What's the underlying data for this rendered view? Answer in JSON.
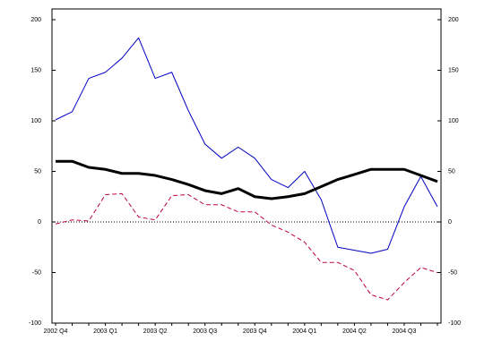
{
  "chart_data": {
    "type": "line",
    "categories": [
      "2002 Q4",
      null,
      null,
      "2003 Q1",
      null,
      null,
      "2003 Q2",
      null,
      null,
      "2003 Q3",
      null,
      null,
      "2003 Q4",
      null,
      null,
      "2004 Q1",
      null,
      null,
      "2004 Q2",
      null,
      null,
      "2004 Q3",
      null,
      null
    ],
    "series": [
      {
        "color": "#0000c0",
        "width": 1,
        "dash": false,
        "values": [
          101,
          109,
          142,
          148,
          162,
          182,
          142,
          148,
          110,
          77,
          63,
          74,
          63,
          42,
          34,
          50,
          22,
          -25,
          -28,
          -31,
          -27,
          15,
          45,
          15
        ]
      },
      {
        "color": "#000000",
        "width": 3,
        "dash": false,
        "values": [
          60,
          60,
          54,
          52,
          48,
          48,
          46,
          42,
          37,
          31,
          28,
          33,
          25,
          23,
          25,
          28,
          35,
          42,
          47,
          52,
          52,
          52,
          46,
          40
        ]
      },
      {
        "color": "#c00040",
        "width": 1,
        "dash": true,
        "values": [
          -2,
          2,
          1,
          27,
          28,
          5,
          2,
          26,
          27,
          17,
          17,
          10,
          10,
          -3,
          -10,
          -20,
          -40,
          -40,
          -48,
          -72,
          -77,
          -60,
          -45,
          -50
        ]
      }
    ],
    "ylim": [
      -100,
      200
    ],
    "yticks": [
      -100,
      -50,
      0,
      50,
      100,
      150,
      200
    ],
    "y2lim": [
      -100,
      200
    ],
    "y2ticks": [
      -100,
      -50,
      0,
      50,
      100,
      150,
      200
    ],
    "reference_line": 0
  }
}
